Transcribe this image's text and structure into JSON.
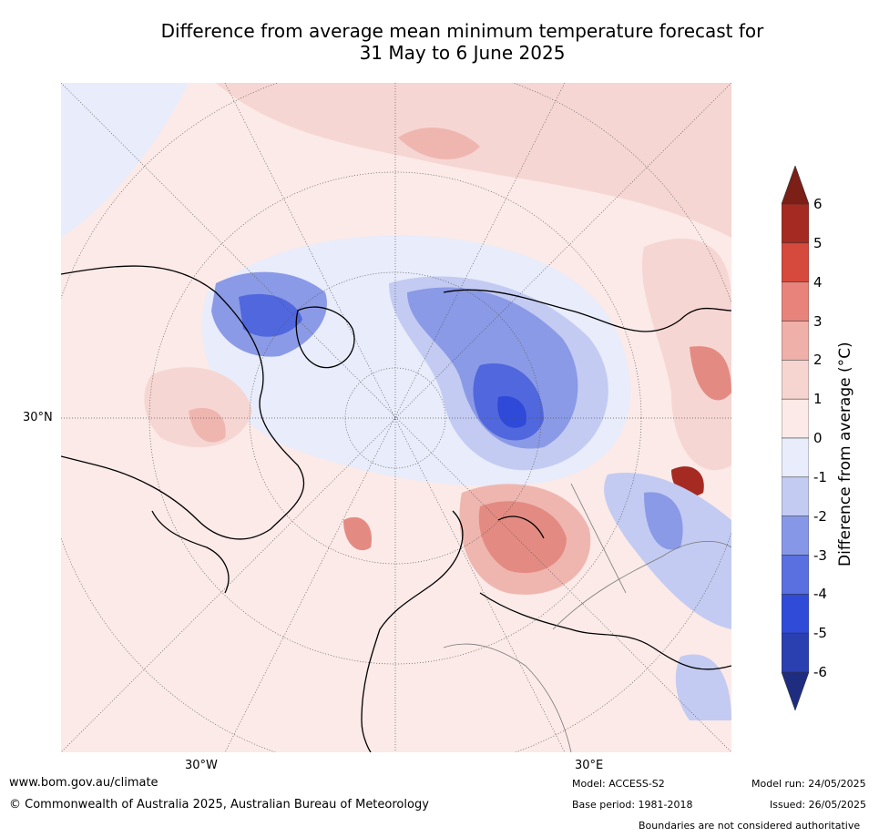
{
  "title": {
    "line1": "Difference from average mean minimum temperature forecast for",
    "line2": "31 May to 6 June 2025"
  },
  "map": {
    "lat_label": "30°N",
    "lon_labels": [
      "30°W",
      "30°E"
    ],
    "colors": {
      "warm_1": "#f6d6d3",
      "warm_2": "#efb6b0",
      "warm_3": "#e38b82",
      "cool_1": "#e8ecfb",
      "cool_2": "#c3cbf2",
      "cool_3": "#8a9ae6",
      "cool_4": "#5167dd",
      "cool_5": "#2f49d8",
      "neutral": "#fbeae7"
    },
    "regions": [
      {
        "name": "arctic-cool",
        "level": -1
      },
      {
        "name": "greenland-cool",
        "level": -3
      },
      {
        "name": "siberia-cool",
        "level": -4
      },
      {
        "name": "russia-warm",
        "level": 3
      },
      {
        "name": "east-asia-warm",
        "level": 3
      },
      {
        "name": "north-pacific-warm",
        "level": 1
      }
    ]
  },
  "colorbar": {
    "label": "Difference from average (°C)",
    "ticks": [
      "6",
      "5",
      "4",
      "3",
      "2",
      "1",
      "0",
      "-1",
      "-2",
      "-3",
      "-4",
      "-5",
      "-6"
    ],
    "colors": [
      "#a52a22",
      "#d6493d",
      "#e8837b",
      "#efb0aa",
      "#f6d5d1",
      "#fbeae7",
      "#e8ecfb",
      "#c3cbf2",
      "#8797e8",
      "#5a6fe0",
      "#2f4bd8",
      "#2a3fb0"
    ],
    "over_color": "#7b1f17",
    "under_color": "#1f2d80"
  },
  "footer": {
    "url": "www.bom.gov.au/climate",
    "copyright": "© Commonwealth of Australia 2025, Australian Bureau of Meteorology",
    "model": "Model: ACCESS-S2",
    "base_period": "Base period: 1981-2018",
    "model_run": "Model run: 24/05/2025",
    "issued": "Issued: 26/05/2025",
    "disclaimer": "Boundaries are not considered authoritative"
  }
}
